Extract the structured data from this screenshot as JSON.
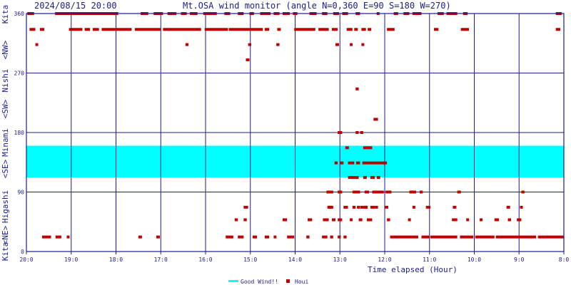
{
  "header": {
    "timestamp": "2024/08/15 20:00",
    "title": "Mt.OSA wind monitor (angle N=0,360 E=90 S=180 W=270)"
  },
  "colors": {
    "frame": "#1c1c8c",
    "grid": "#1c1c8c",
    "good_band": "#00ffff",
    "points": "#c00000",
    "text": "#1c1c8c"
  },
  "legend": {
    "good_label": "Good Wind!!",
    "points_label": "Houi"
  },
  "chart_data": {
    "type": "scatter",
    "title": "Mt.OSA wind monitor (angle N=0,360 E=90 S=180 W=270)",
    "xlabel": "Time elapsed (Hour)",
    "ylabel": "Kita <NE> Higashi <SE> Minami <SW> Nishi <NW> Kita",
    "x_ticks": [
      "20:0",
      "19:0",
      "18:0",
      "17:0",
      "16:0",
      "15:0",
      "14:0",
      "13:0",
      "12:0",
      "11:0",
      "10:0",
      "9:0",
      "8:0"
    ],
    "x_range_hours_elapsed": [
      0,
      12
    ],
    "y_ticks": [
      0,
      90,
      180,
      270,
      360
    ],
    "ylim": [
      0,
      360
    ],
    "y_side_labels": [
      "Kita",
      "<NE>",
      "Higashi",
      "<SE>",
      "Minami",
      "<SW>",
      "Nishi",
      "<NW>",
      "Kita"
    ],
    "grid": true,
    "legend_position": "bottom-center",
    "good_wind_band": [
      112,
      160
    ],
    "series": [
      {
        "name": "Houi",
        "runs": [
          [
            0.02,
            0.17,
            360
          ],
          [
            0.64,
            2.05,
            360
          ],
          [
            2.55,
            2.72,
            360
          ],
          [
            2.84,
            3.05,
            360
          ],
          [
            3.15,
            3.35,
            360
          ],
          [
            3.45,
            3.58,
            360
          ],
          [
            3.65,
            3.82,
            360
          ],
          [
            3.95,
            4.25,
            360
          ],
          [
            4.42,
            4.55,
            360
          ],
          [
            4.72,
            4.85,
            360
          ],
          [
            4.98,
            5.08,
            360
          ],
          [
            5.22,
            5.45,
            360
          ],
          [
            5.52,
            5.65,
            360
          ],
          [
            5.72,
            5.88,
            360
          ],
          [
            5.95,
            6.05,
            360
          ],
          [
            6.32,
            6.48,
            360
          ],
          [
            6.6,
            6.72,
            360
          ],
          [
            6.85,
            6.98,
            360
          ],
          [
            7.05,
            7.18,
            360
          ],
          [
            7.35,
            7.45,
            360
          ],
          [
            7.82,
            7.88,
            360
          ],
          [
            8.2,
            8.3,
            360
          ],
          [
            8.42,
            8.55,
            360
          ],
          [
            8.62,
            8.82,
            360
          ],
          [
            9.18,
            9.32,
            360
          ],
          [
            9.38,
            9.62,
            360
          ],
          [
            9.75,
            9.85,
            360
          ],
          [
            11.82,
            11.95,
            360
          ],
          [
            0.07,
            0.2,
            336
          ],
          [
            0.3,
            0.4,
            336
          ],
          [
            0.95,
            1.25,
            336
          ],
          [
            1.3,
            1.42,
            336
          ],
          [
            1.48,
            1.62,
            336
          ],
          [
            1.68,
            2.35,
            336
          ],
          [
            2.42,
            3.0,
            336
          ],
          [
            3.05,
            3.9,
            336
          ],
          [
            3.98,
            4.5,
            336
          ],
          [
            4.52,
            5.28,
            336
          ],
          [
            5.32,
            5.42,
            336
          ],
          [
            5.6,
            5.68,
            336
          ],
          [
            5.98,
            6.45,
            336
          ],
          [
            6.52,
            6.75,
            336
          ],
          [
            6.82,
            6.95,
            336
          ],
          [
            7.15,
            7.28,
            336
          ],
          [
            7.32,
            7.4,
            336
          ],
          [
            7.48,
            7.58,
            336
          ],
          [
            7.62,
            7.7,
            336
          ],
          [
            8.05,
            8.22,
            336
          ],
          [
            9.1,
            9.2,
            336
          ],
          [
            9.7,
            9.88,
            336
          ],
          [
            11.82,
            11.92,
            336
          ],
          [
            0.2,
            0.25,
            313
          ],
          [
            3.55,
            3.62,
            313
          ],
          [
            4.95,
            5.02,
            313
          ],
          [
            5.58,
            5.65,
            313
          ],
          [
            6.9,
            6.98,
            313
          ],
          [
            7.22,
            7.28,
            313
          ],
          [
            7.48,
            7.52,
            313
          ],
          [
            4.9,
            4.98,
            290
          ],
          [
            7.35,
            7.42,
            246
          ],
          [
            7.75,
            7.85,
            200
          ],
          [
            6.95,
            7.05,
            180
          ],
          [
            7.35,
            7.42,
            180
          ],
          [
            7.45,
            7.52,
            180
          ],
          [
            7.12,
            7.2,
            157
          ],
          [
            7.52,
            7.72,
            157
          ],
          [
            6.88,
            6.95,
            134
          ],
          [
            7.0,
            7.08,
            134
          ],
          [
            7.18,
            7.32,
            134
          ],
          [
            7.36,
            7.45,
            134
          ],
          [
            7.5,
            8.05,
            134
          ],
          [
            7.18,
            7.42,
            112
          ],
          [
            7.52,
            7.6,
            112
          ],
          [
            7.68,
            7.78,
            112
          ],
          [
            7.82,
            7.9,
            112
          ],
          [
            6.7,
            6.85,
            90
          ],
          [
            6.95,
            7.05,
            90
          ],
          [
            7.28,
            7.45,
            90
          ],
          [
            7.55,
            7.65,
            90
          ],
          [
            7.72,
            7.98,
            90
          ],
          [
            8.02,
            8.15,
            90
          ],
          [
            8.55,
            8.7,
            90
          ],
          [
            8.78,
            8.85,
            90
          ],
          [
            9.62,
            9.7,
            90
          ],
          [
            11.05,
            11.12,
            90
          ],
          [
            6.75,
            6.82,
            67
          ],
          [
            7.08,
            7.18,
            67
          ],
          [
            7.38,
            7.42,
            67
          ],
          [
            7.55,
            7.62,
            67
          ],
          [
            7.78,
            7.85,
            67
          ],
          [
            6.72,
            6.85,
            67
          ],
          [
            4.85,
            4.95,
            67
          ],
          [
            7.28,
            7.35,
            67
          ],
          [
            7.45,
            7.6,
            67
          ],
          [
            7.68,
            7.78,
            67
          ],
          [
            8.0,
            8.08,
            67
          ],
          [
            8.62,
            8.68,
            67
          ],
          [
            8.92,
            9.02,
            67
          ],
          [
            9.52,
            9.6,
            67
          ],
          [
            10.72,
            10.8,
            67
          ],
          [
            11.02,
            11.08,
            67
          ],
          [
            4.65,
            4.72,
            48
          ],
          [
            4.85,
            4.92,
            48
          ],
          [
            5.72,
            5.82,
            48
          ],
          [
            6.28,
            6.38,
            48
          ],
          [
            6.62,
            6.75,
            48
          ],
          [
            6.82,
            6.9,
            48
          ],
          [
            6.95,
            7.05,
            48
          ],
          [
            7.22,
            7.28,
            48
          ],
          [
            7.42,
            7.5,
            48
          ],
          [
            7.6,
            7.72,
            48
          ],
          [
            8.05,
            8.12,
            48
          ],
          [
            8.52,
            8.58,
            48
          ],
          [
            9.5,
            9.62,
            48
          ],
          [
            9.82,
            9.88,
            48
          ],
          [
            10.12,
            10.18,
            48
          ],
          [
            10.45,
            10.55,
            48
          ],
          [
            10.75,
            10.82,
            48
          ],
          [
            10.95,
            11.05,
            48
          ],
          [
            0.35,
            0.55,
            22
          ],
          [
            0.65,
            0.78,
            22
          ],
          [
            0.9,
            0.95,
            22
          ],
          [
            2.5,
            2.58,
            22
          ],
          [
            2.9,
            2.98,
            22
          ],
          [
            4.45,
            4.62,
            22
          ],
          [
            4.72,
            4.85,
            22
          ],
          [
            5.05,
            5.15,
            22
          ],
          [
            5.32,
            5.42,
            22
          ],
          [
            5.52,
            5.58,
            22
          ],
          [
            5.82,
            5.98,
            22
          ],
          [
            6.25,
            6.32,
            22
          ],
          [
            6.6,
            6.72,
            22
          ],
          [
            6.78,
            6.85,
            22
          ],
          [
            6.95,
            7.02,
            22
          ],
          [
            7.08,
            7.15,
            22
          ],
          [
            8.12,
            8.75,
            22
          ],
          [
            8.82,
            9.0,
            22
          ],
          [
            9.02,
            9.62,
            22
          ],
          [
            9.68,
            9.98,
            22
          ],
          [
            10.02,
            10.45,
            22
          ],
          [
            10.48,
            11.38,
            22
          ],
          [
            11.42,
            12.0,
            22
          ]
        ]
      }
    ]
  }
}
